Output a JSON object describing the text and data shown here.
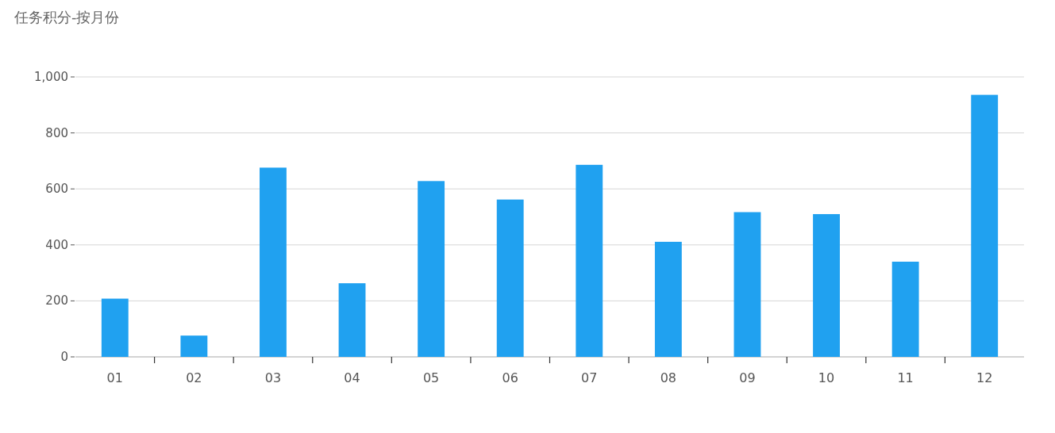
{
  "chart_data": {
    "type": "bar",
    "title": "任务积分-按月份",
    "categories": [
      "01",
      "02",
      "03",
      "04",
      "05",
      "06",
      "07",
      "08",
      "09",
      "10",
      "11",
      "12"
    ],
    "values": [
      208,
      76,
      676,
      263,
      628,
      562,
      686,
      411,
      517,
      510,
      340,
      936
    ],
    "color": "#20a1f0",
    "ylim": [
      0,
      1000
    ],
    "yticks": [
      0,
      200,
      400,
      600,
      800,
      {
        "value": 1000,
        "label": "1,000"
      }
    ],
    "grid": "y"
  }
}
